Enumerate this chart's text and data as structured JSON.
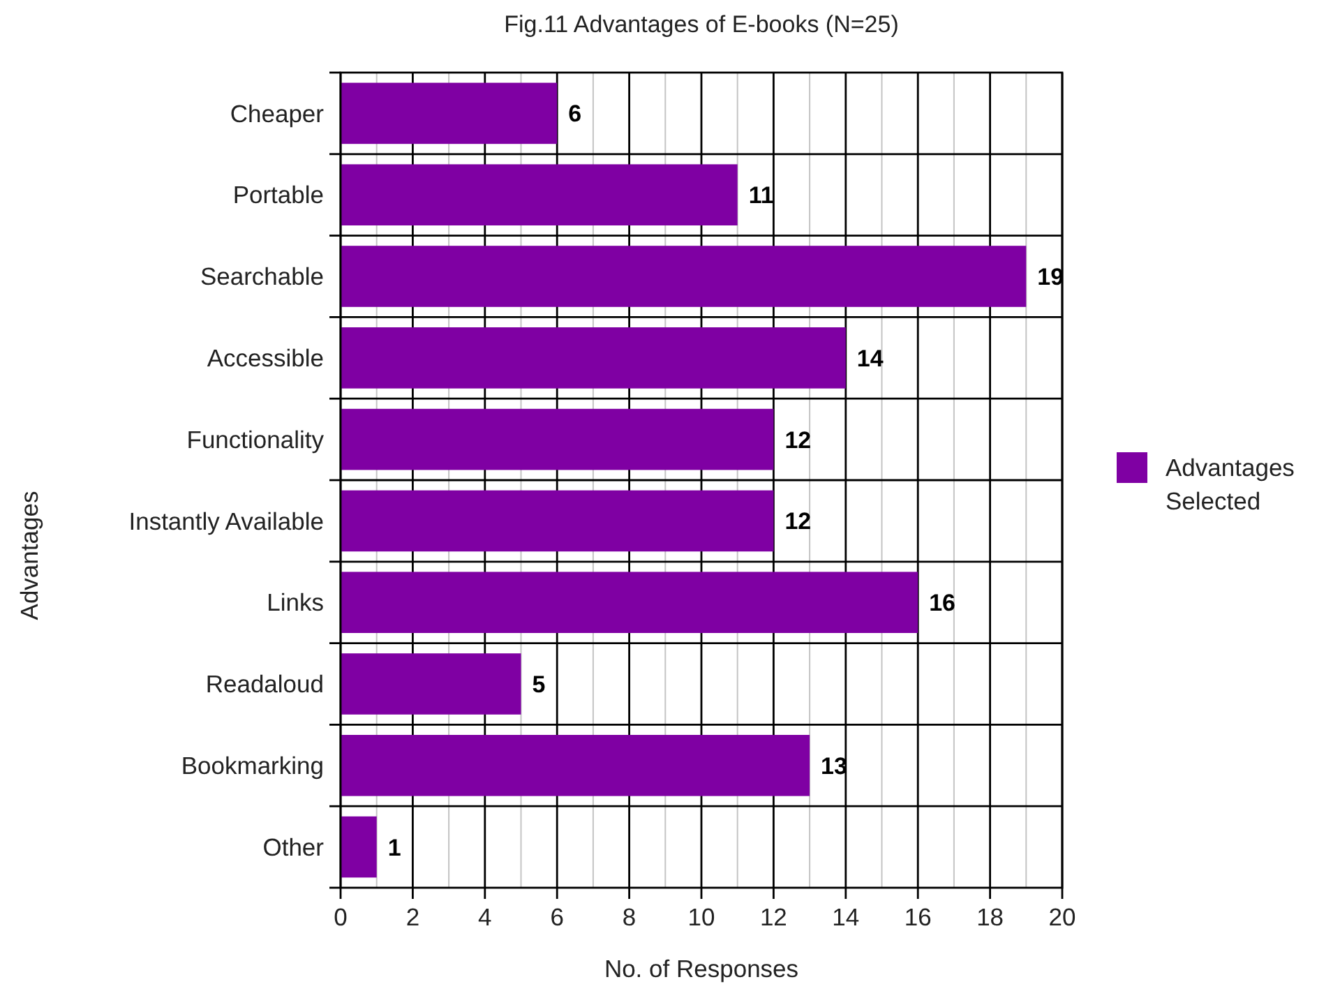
{
  "chart_data": {
    "type": "bar",
    "orientation": "horizontal",
    "title": "Fig.11 Advantages of E-books (N=25)",
    "xlabel": "No. of Responses",
    "ylabel": "Advantages",
    "categories": [
      "Cheaper",
      "Portable",
      "Searchable",
      "Accessible",
      "Functionality",
      "Instantly Available",
      "Links",
      "Readaloud",
      "Bookmarking",
      "Other"
    ],
    "series": [
      {
        "name": "Advantages Selected",
        "color": "#7f00a3",
        "values": [
          6,
          11,
          19,
          14,
          12,
          12,
          16,
          5,
          13,
          1
        ]
      }
    ],
    "xlim": [
      0,
      20
    ],
    "xticks": [
      0,
      {
        "value": 1,
        "label": null
      },
      2,
      {
        "value": 3,
        "label": null
      },
      4,
      {
        "value": 5,
        "label": null
      },
      6,
      {
        "value": 7,
        "label": null
      },
      8,
      {
        "value": 9,
        "label": null
      },
      10,
      {
        "value": 11,
        "label": null
      },
      12,
      {
        "value": 13,
        "label": null
      },
      14,
      {
        "value": 15,
        "label": null
      },
      16,
      {
        "value": 17,
        "label": null
      },
      18,
      {
        "value": 19,
        "label": null
      },
      20
    ],
    "grid": true,
    "legend": "right",
    "data_labels": true
  }
}
